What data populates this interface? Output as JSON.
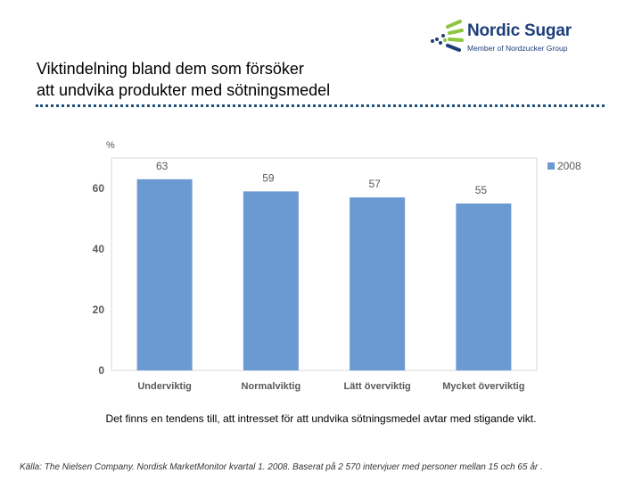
{
  "logo": {
    "name": "Nordic Sugar",
    "tagline": "Member of Nordzucker Group"
  },
  "title": {
    "line1": "Viktindelning bland dem som försöker",
    "line2": "att undvika produkter med sötningsmedel"
  },
  "chart_data": {
    "type": "bar",
    "categories": [
      "Underviktig",
      "Normalviktig",
      "Lätt överviktig",
      "Mycket överviktig"
    ],
    "series": [
      {
        "name": "2008",
        "values": [
          63,
          59,
          57,
          55
        ],
        "color": "#6b9ad2"
      }
    ],
    "ylabel": "%",
    "ylim": [
      0,
      70
    ],
    "yticks": [
      0,
      20,
      40,
      60
    ],
    "data_labels": true,
    "grid": false,
    "legend": "right"
  },
  "caption": "Det finns en tendens till, att intresset för att undvika sötningsmedel avtar med stigande vikt.",
  "source": "Källa: The Nielsen Company. Nordisk MarketMonitor kvartal 1. 2008. Baserat på 2 570 intervjuer med personer mellan 15 och 65 år ."
}
